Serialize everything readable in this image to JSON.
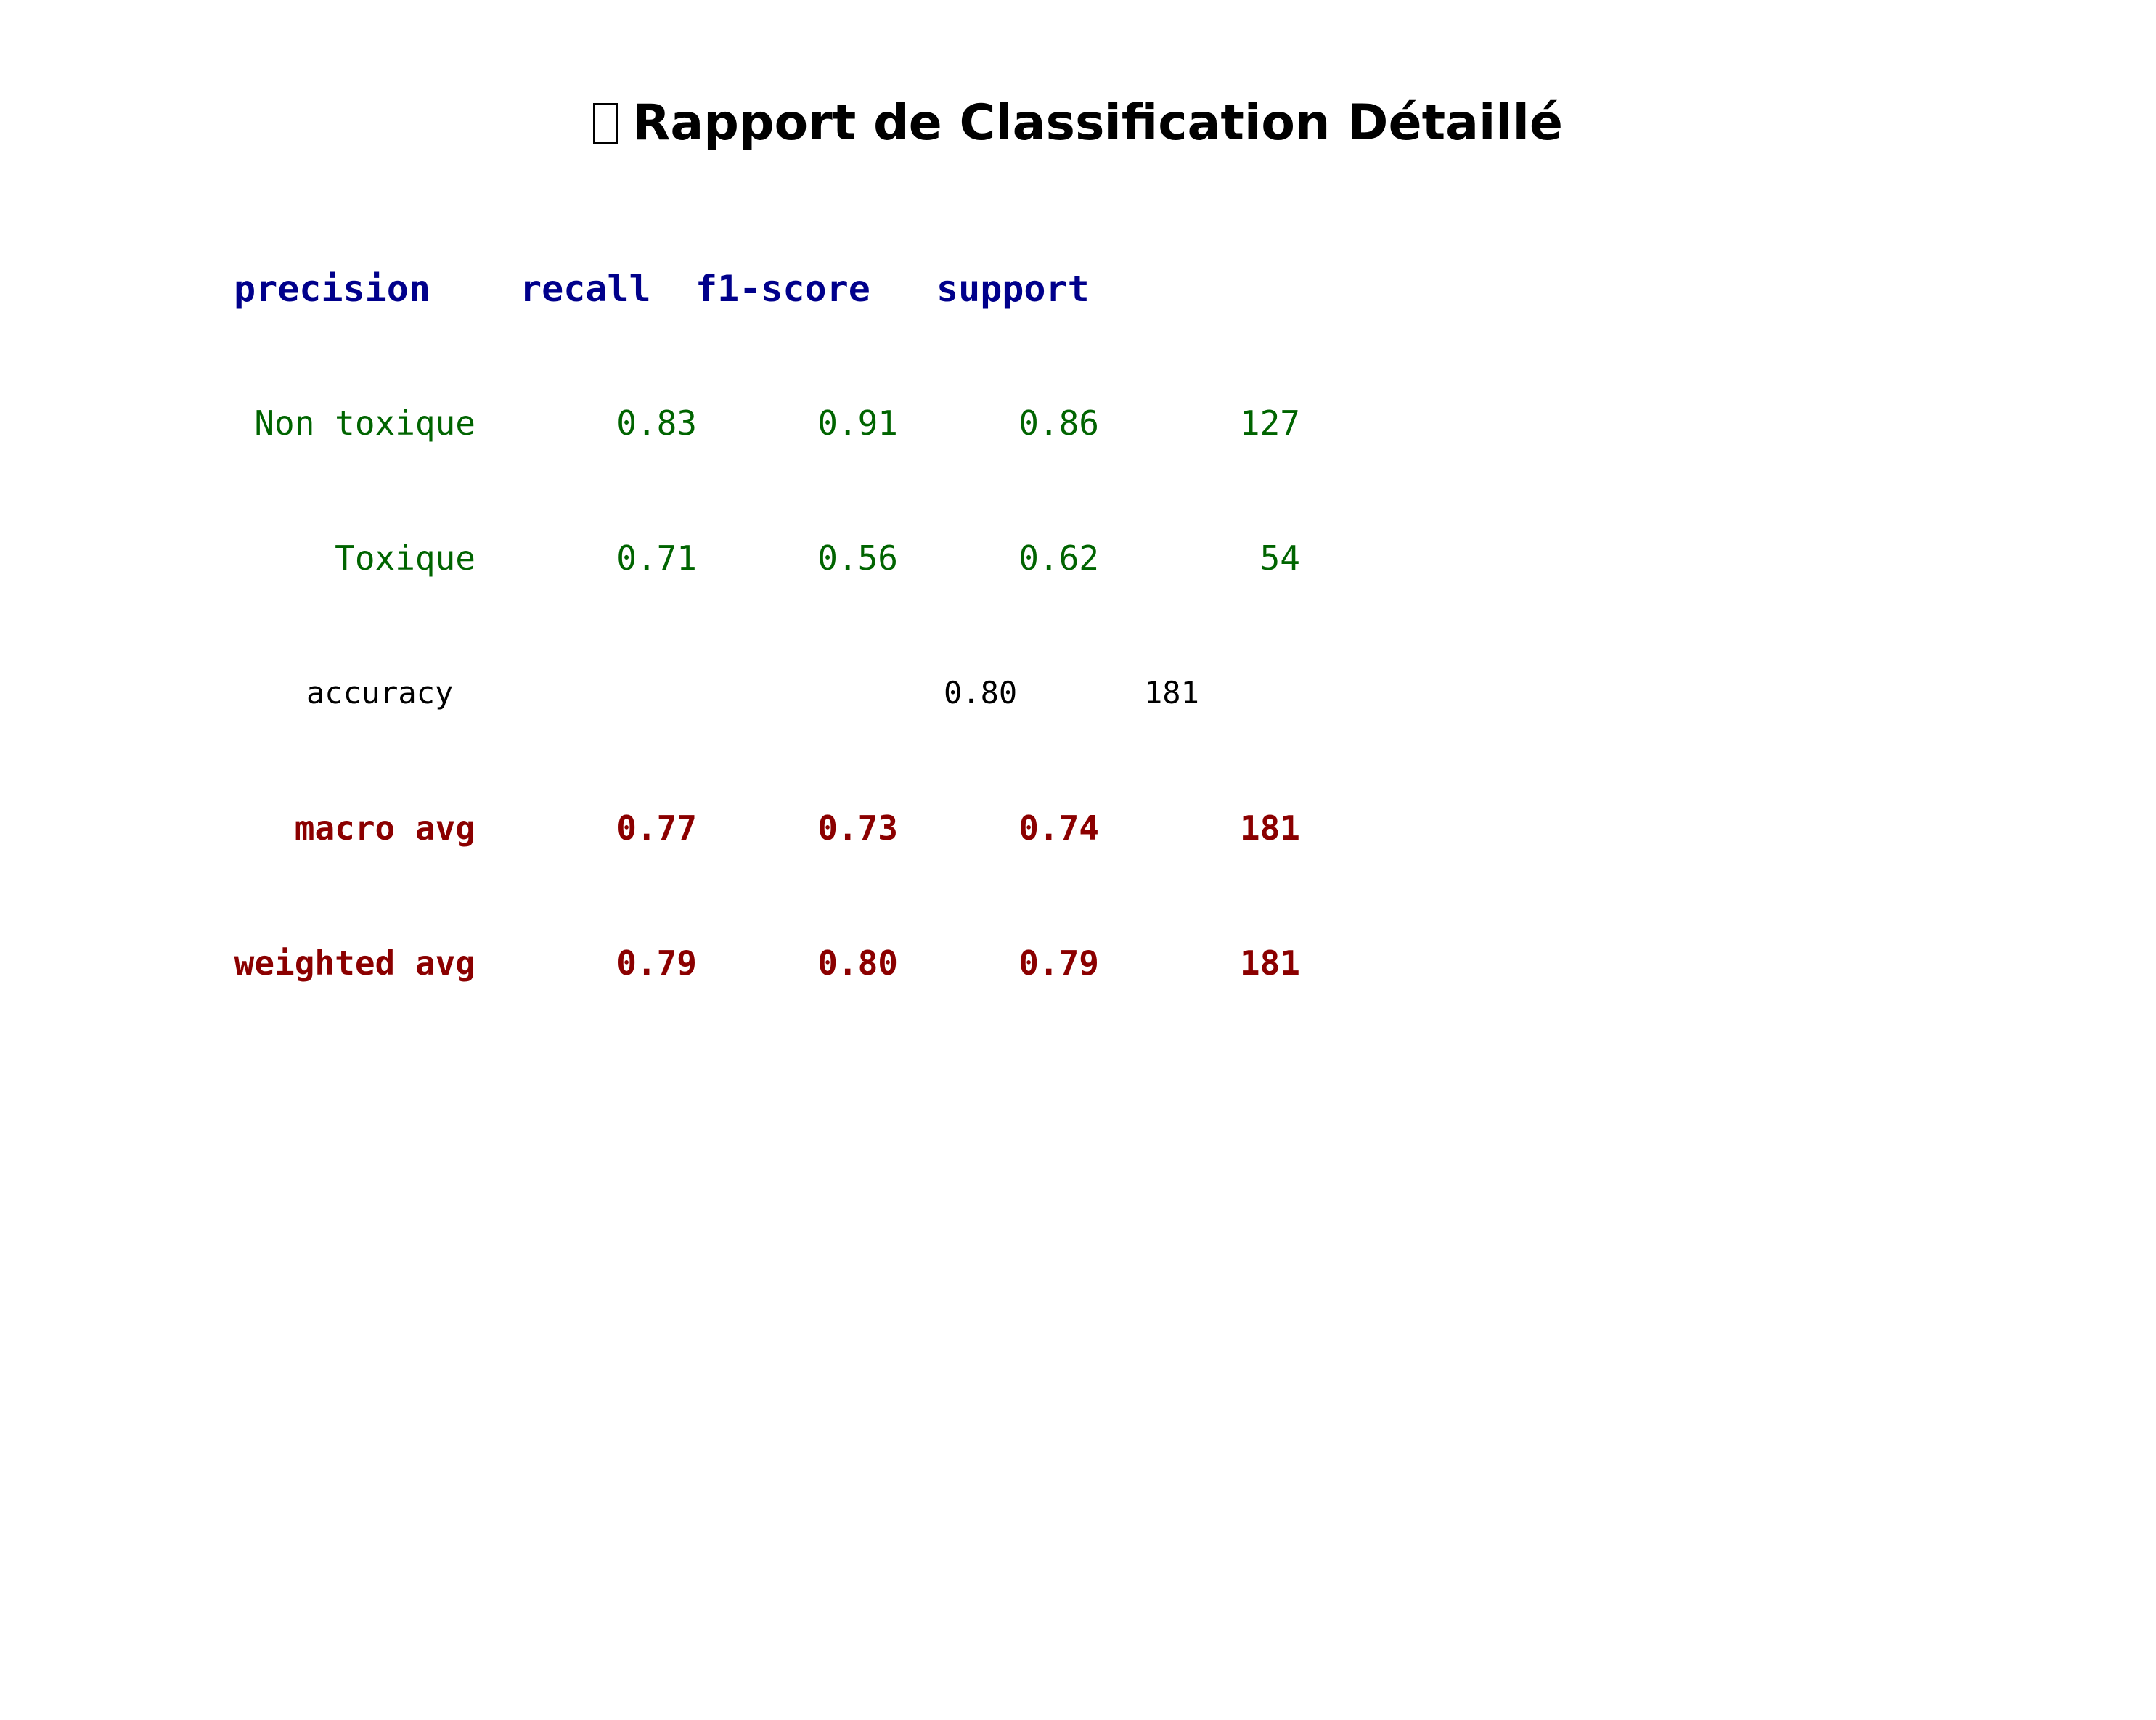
{
  "title": {
    "icon": "bar-chart-icon",
    "text": "Rapport de Classification Détaillé"
  },
  "report": {
    "headers": [
      "precision",
      "recall",
      "f1-score",
      "support"
    ],
    "classes": [
      {
        "label": "Non toxique",
        "precision": "0.83",
        "recall": "0.91",
        "f1": "0.86",
        "support": "127"
      },
      {
        "label": "Toxique",
        "precision": "0.71",
        "recall": "0.56",
        "f1": "0.62",
        "support": "54"
      }
    ],
    "accuracy": {
      "label": "accuracy",
      "f1": "0.80",
      "support": "181"
    },
    "averages": [
      {
        "label": "macro avg",
        "precision": "0.77",
        "recall": "0.73",
        "f1": "0.74",
        "support": "181"
      },
      {
        "label": "weighted avg",
        "precision": "0.79",
        "recall": "0.80",
        "f1": "0.79",
        "support": "181"
      }
    ]
  },
  "colors": {
    "header": "#00008b",
    "class_rows": "#006400",
    "accuracy_row": "#000000",
    "average_rows": "#8b0000"
  }
}
